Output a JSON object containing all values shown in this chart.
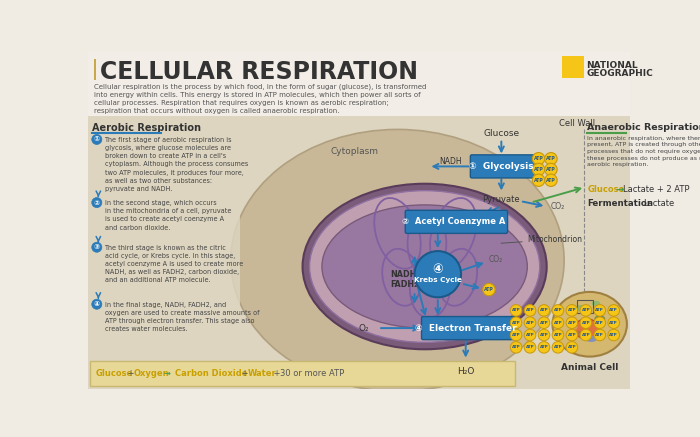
{
  "title": "CELLULAR RESPIRATION",
  "title_bar_color": "#c8a84b",
  "bg_color": "#e8e0d0",
  "top_bg_color": "#f0ece4",
  "main_text": "Cellular respiration is the process by which food, in the form of sugar (glucose), is transformed\ninto energy within cells. This energy is stored in ATP molecules, which then power all sorts of\ncellular processes. Respiration that requires oxygen is known as aerobic respiration;\nrespiration that occurs without oxygen is called anaerobic respiration.",
  "ng_yellow": "#f5c518",
  "aerobic_title": "Aerobic Respiration",
  "anaerobic_title": "Anaerobic Respiration",
  "aerobic_color": "#2b7bb9",
  "anaerobic_color": "#4a9e4a",
  "step1_text": "The first stage of aerobic respiration is\nglycosis, where glucose molecules are\nbroken down to create ATP in a cell's\ncytoplasm. Although the process consumes\ntwo ATP molecules, it produces four more,\nas well as two other substances:\npyruvate and NADH.",
  "step2_text": "In the second stage, which occurs\nin the mitochondria of a cell, pyruvate\nis used to create acetyl coenzyme A\nand carbon dioxide.",
  "step3_text": "The third stage is known as the citric\nacid cycle, or Krebs cycle. In this stage,\nacetyl coenzyme A is used to create more\nNADH, as well as FADH2, carbon dioxide,\nand an additional ATP molecule.",
  "step4_text": "In the final stage, NADH, FADH2, and\noxygen are used to create massive amounts of\nATP through electron transfer. This stage also\ncreates water molecules.",
  "anaerobic_desc": "In anaerobic respiration, where there is no oxygen\npresent, ATP is created through other chemical\nprocesses that do not require oxygen. However,\nthese processes do not produce as much ATP as\naerobic respiration.",
  "mito_outer_color": "#7a5c7a",
  "arrow_blue": "#2b7bb9",
  "arrow_green": "#4a9e4a",
  "atp_color": "#f5c518",
  "atp_text_color": "#2b5a8a"
}
